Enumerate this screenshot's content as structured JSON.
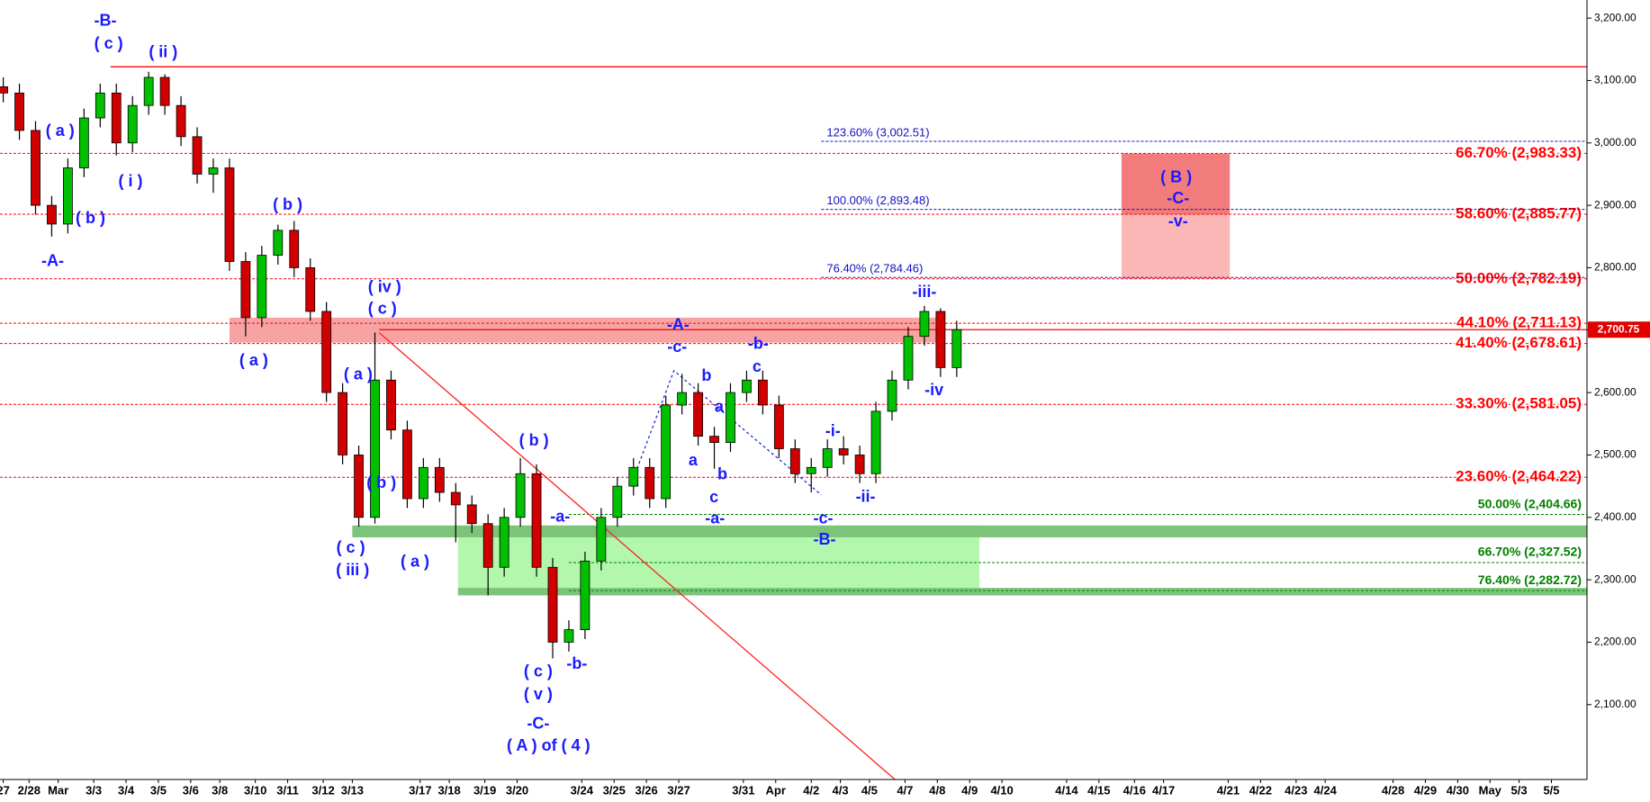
{
  "chart_data": {
    "type": "candlestick",
    "xlim": [
      -0.1,
      49
    ],
    "ylim": [
      1980,
      3229
    ],
    "xticks": [
      {
        "value": 0,
        "label": "27"
      },
      {
        "value": 0.8,
        "label": "2/28"
      },
      {
        "value": 1.7,
        "label": "Mar"
      },
      {
        "value": 2.8,
        "label": "3/3"
      },
      {
        "value": 3.8,
        "label": "3/4"
      },
      {
        "value": 4.8,
        "label": "3/5"
      },
      {
        "value": 5.8,
        "label": "3/6"
      },
      {
        "value": 6.7,
        "label": "3/8"
      },
      {
        "value": 7.8,
        "label": "3/10"
      },
      {
        "value": 8.8,
        "label": "3/11"
      },
      {
        "value": 9.9,
        "label": "3/12"
      },
      {
        "value": 10.8,
        "label": "3/13"
      },
      {
        "value": 12.9,
        "label": "3/17"
      },
      {
        "value": 13.8,
        "label": "3/18"
      },
      {
        "value": 14.9,
        "label": "3/19"
      },
      {
        "value": 15.9,
        "label": "3/20"
      },
      {
        "value": 17.9,
        "label": "3/24"
      },
      {
        "value": 18.9,
        "label": "3/25"
      },
      {
        "value": 19.9,
        "label": "3/26"
      },
      {
        "value": 20.9,
        "label": "3/27"
      },
      {
        "value": 22.9,
        "label": "3/31"
      },
      {
        "value": 23.9,
        "label": "Apr"
      },
      {
        "value": 25,
        "label": "4/2"
      },
      {
        "value": 25.9,
        "label": "4/3"
      },
      {
        "value": 26.8,
        "label": "4/5"
      },
      {
        "value": 27.9,
        "label": "4/7"
      },
      {
        "value": 28.9,
        "label": "4/8"
      },
      {
        "value": 29.9,
        "label": "4/9"
      },
      {
        "value": 30.9,
        "label": "4/10"
      },
      {
        "value": 32.9,
        "label": "4/14"
      },
      {
        "value": 33.9,
        "label": "4/15"
      },
      {
        "value": 35,
        "label": "4/16"
      },
      {
        "value": 35.9,
        "label": "4/17"
      },
      {
        "value": 37.9,
        "label": "4/21"
      },
      {
        "value": 38.9,
        "label": "4/22"
      },
      {
        "value": 40,
        "label": "4/23"
      },
      {
        "value": 40.9,
        "label": "4/24"
      },
      {
        "value": 43,
        "label": "4/28"
      },
      {
        "value": 44,
        "label": "4/29"
      },
      {
        "value": 45,
        "label": "4/30"
      },
      {
        "value": 46,
        "label": "May"
      },
      {
        "value": 46.9,
        "label": "5/3"
      },
      {
        "value": 47.9,
        "label": "5/5"
      }
    ],
    "yticks": [
      {
        "value": 2100,
        "label": "2,100.00"
      },
      {
        "value": 2200,
        "label": "2,200.00"
      },
      {
        "value": 2300,
        "label": "2,300.00"
      },
      {
        "value": 2400,
        "label": "2,400.00"
      },
      {
        "value": 2500,
        "label": "2,500.00"
      },
      {
        "value": 2600,
        "label": "2,600.00"
      },
      {
        "value": 2700,
        "label": "2,700.00"
      },
      {
        "value": 2800,
        "label": "2,800.00"
      },
      {
        "value": 2900,
        "label": "2,900.00"
      },
      {
        "value": 3000,
        "label": "3,000.00"
      },
      {
        "value": 3100,
        "label": "3,100.00"
      },
      {
        "value": 3200,
        "label": "3,200.00"
      }
    ],
    "up_color": "#00c000",
    "down_color": "#d00000",
    "x": [
      0,
      0.5,
      1,
      1.5,
      2,
      2.5,
      3,
      3.5,
      4,
      4.5,
      5,
      5.5,
      6,
      6.5,
      7,
      7.5,
      8,
      8.5,
      9,
      9.5,
      10,
      10.5,
      11,
      11.5,
      12,
      12.5,
      13,
      13.5,
      14,
      14.5,
      15,
      15.5,
      16,
      16.5,
      17,
      17.5,
      18,
      18.5,
      19,
      19.5,
      20,
      20.5,
      21,
      21.5,
      22,
      22.5,
      23,
      23.5,
      24,
      24.5,
      25,
      25.5,
      26,
      26.5,
      27,
      27.5,
      28,
      28.5,
      29,
      29.5
    ],
    "open": [
      3090,
      3080,
      3020,
      2900,
      2870,
      2960,
      3040,
      3080,
      3000,
      3060,
      3105,
      3060,
      3010,
      2950,
      2960,
      2810,
      2720,
      2820,
      2860,
      2800,
      2730,
      2600,
      2500,
      2400,
      2620,
      2540,
      2430,
      2480,
      2440,
      2420,
      2390,
      2320,
      2400,
      2470,
      2320,
      2200,
      2220,
      2330,
      2400,
      2450,
      2480,
      2430,
      2580,
      2600,
      2530,
      2520,
      2600,
      2620,
      2580,
      2510,
      2470,
      2480,
      2510,
      2500,
      2470,
      2570,
      2620,
      2690,
      2730,
      2640
    ],
    "high": [
      3105,
      3095,
      3035,
      2915,
      2975,
      3055,
      3095,
      3095,
      3075,
      3114,
      3110,
      3075,
      3025,
      2975,
      2975,
      2825,
      2835,
      2869,
      2875,
      2815,
      2745,
      2615,
      2515,
      2696,
      2635,
      2555,
      2495,
      2495,
      2455,
      2435,
      2405,
      2415,
      2495,
      2485,
      2335,
      2235,
      2345,
      2415,
      2465,
      2495,
      2495,
      2595,
      2630,
      2615,
      2545,
      2615,
      2635,
      2635,
      2595,
      2525,
      2495,
      2525,
      2530,
      2515,
      2585,
      2635,
      2705,
      2739,
      2735,
      2715
    ],
    "low": [
      3065,
      3005,
      2885,
      2850,
      2855,
      2945,
      3025,
      2980,
      2985,
      3045,
      3045,
      2995,
      2935,
      2920,
      2795,
      2690,
      2705,
      2805,
      2785,
      2715,
      2585,
      2485,
      2385,
      2390,
      2525,
      2415,
      2415,
      2425,
      2360,
      2375,
      2275,
      2305,
      2385,
      2305,
      2174,
      2185,
      2205,
      2315,
      2385,
      2435,
      2415,
      2415,
      2565,
      2515,
      2478,
      2505,
      2585,
      2565,
      2495,
      2455,
      2440,
      2465,
      2485,
      2455,
      2455,
      2555,
      2605,
      2675,
      2625,
      2625
    ],
    "close": [
      3080,
      3020,
      2900,
      2870,
      2960,
      3040,
      3080,
      3000,
      3060,
      3105,
      3060,
      3010,
      2950,
      2960,
      2810,
      2720,
      2820,
      2860,
      2800,
      2730,
      2600,
      2500,
      2400,
      2620,
      2540,
      2430,
      2480,
      2440,
      2420,
      2390,
      2320,
      2400,
      2470,
      2320,
      2200,
      2220,
      2330,
      2400,
      2450,
      2480,
      2430,
      2580,
      2600,
      2530,
      2520,
      2600,
      2620,
      2580,
      2510,
      2470,
      2480,
      2510,
      2500,
      2470,
      2570,
      2620,
      2690,
      2730,
      2640,
      2700.75
    ],
    "zones": [
      {
        "x": [
          7.0,
          28.9
        ],
        "y": [
          2680,
          2720
        ],
        "color": "#f7a3a3"
      },
      {
        "x": [
          34.6,
          37.95
        ],
        "y": [
          2885,
          2983
        ],
        "color": "#f27c7c"
      },
      {
        "x": [
          34.6,
          37.95
        ],
        "y": [
          2782,
          2885
        ],
        "color": "#fbb6b6"
      },
      {
        "x": [
          14.07,
          30.2
        ],
        "y": [
          2282,
          2387
        ],
        "color": "#b3f7ad"
      },
      {
        "x": [
          10.8,
          49
        ],
        "y": [
          2368,
          2387
        ],
        "color": "#7cc47a"
      },
      {
        "x": [
          14.07,
          49
        ],
        "y": [
          2275,
          2287
        ],
        "color": "#7cc47a"
      }
    ],
    "segments": [
      {
        "x": [
          3.32,
          49
        ],
        "y": [
          3122,
          3122
        ],
        "color": "#ff0000",
        "dash": "none"
      },
      {
        "x": [
          11.63,
          49
        ],
        "y": [
          2700.75,
          2700.75
        ],
        "color": "#ff0000",
        "dash": "none"
      },
      {
        "x": [
          11.63,
          27.59
        ],
        "y": [
          2696,
          1980
        ],
        "color": "#ff2020",
        "dash": "none"
      },
      {
        "x": [
          19.61,
          20.75,
          25.31
        ],
        "y": [
          2478,
          2635,
          2436
        ],
        "color": "#2030d0",
        "dash": "3,3"
      }
    ],
    "levels": [
      {
        "label": "66.70% (2,983.33)",
        "value": 2983.33,
        "group": "retracement",
        "color": "#ff0000",
        "x_start": -0.1
      },
      {
        "label": "58.60% (2,885.77)",
        "value": 2885.77,
        "group": "retracement",
        "color": "#ff0000",
        "x_start": -0.1
      },
      {
        "label": "50.00% (2,782.19)",
        "value": 2782.19,
        "group": "retracement",
        "color": "#ff0000",
        "x_start": -0.1
      },
      {
        "label": "44.10% (2,711.13)",
        "value": 2711.13,
        "group": "retracement",
        "color": "#ff0000",
        "x_start": -0.1
      },
      {
        "label": "41.40% (2,678.61)",
        "value": 2678.61,
        "group": "retracement",
        "color": "#ff0000",
        "x_start": -0.1
      },
      {
        "label": "33.30% (2,581.05)",
        "value": 2581.05,
        "group": "retracement",
        "color": "#ff0000",
        "x_start": -0.1
      },
      {
        "label": "23.60% (2,464.22)",
        "value": 2464.22,
        "group": "retracement",
        "color": "#ff0000",
        "x_start": -0.1
      },
      {
        "label": "123.60% (3,002.51)",
        "value": 3002.51,
        "group": "extension",
        "color": "#1010c0",
        "x_start": 25.31
      },
      {
        "label": "100.00% (2,893.48)",
        "value": 2893.48,
        "group": "extension",
        "color": "#1010c0",
        "x_start": 25.31
      },
      {
        "label": "76.40% (2,784.46)",
        "value": 2784.46,
        "group": "extension",
        "color": "#1010c0",
        "x_start": 25.31
      },
      {
        "label": "50.00% (2,404.66)",
        "value": 2404.66,
        "group": "support",
        "color": "#008000",
        "x_start": 17.5
      },
      {
        "label": "66.70% (2,327.52)",
        "value": 2327.52,
        "group": "support",
        "color": "#008000",
        "x_start": 17.5
      },
      {
        "label": "76.40% (2,282.72)",
        "value": 2282.72,
        "group": "support",
        "color": "#008000",
        "x_start": 17.5
      }
    ],
    "last_price": {
      "value": 2700.75,
      "label": "2,700.75"
    },
    "annotation_color": "#1a1aff",
    "annotations": [
      {
        "text": "-B-",
        "x": 3.16,
        "y": 3195
      },
      {
        "text": "( c )",
        "x": 3.26,
        "y": 3158
      },
      {
        "text": "( ii )",
        "x": 4.95,
        "y": 3144
      },
      {
        "text": "( a )",
        "x": 1.76,
        "y": 3018
      },
      {
        "text": "( b )",
        "x": 2.7,
        "y": 2878
      },
      {
        "text": "( i )",
        "x": 3.94,
        "y": 2937
      },
      {
        "text": "-A-",
        "x": 1.53,
        "y": 2810
      },
      {
        "text": "( b )",
        "x": 8.8,
        "y": 2900
      },
      {
        "text": "( a )",
        "x": 7.75,
        "y": 2650
      },
      {
        "text": "( iv )",
        "x": 11.8,
        "y": 2768
      },
      {
        "text": "( c )",
        "x": 11.73,
        "y": 2733
      },
      {
        "text": "( a )",
        "x": 10.98,
        "y": 2628
      },
      {
        "text": "( b )",
        "x": 11.7,
        "y": 2454
      },
      {
        "text": "( c )",
        "x": 10.75,
        "y": 2350
      },
      {
        "text": "( iii )",
        "x": 10.81,
        "y": 2314
      },
      {
        "text": "( a )",
        "x": 12.74,
        "y": 2328
      },
      {
        "text": "( b )",
        "x": 16.42,
        "y": 2522
      },
      {
        "text": "-a-",
        "x": 17.23,
        "y": 2400
      },
      {
        "text": "-b-",
        "x": 17.75,
        "y": 2164
      },
      {
        "text": "( c )",
        "x": 16.55,
        "y": 2152
      },
      {
        "text": "( v )",
        "x": 16.55,
        "y": 2115
      },
      {
        "text": "-C-",
        "x": 16.55,
        "y": 2068
      },
      {
        "text": "( A ) of ( 4 )",
        "x": 16.87,
        "y": 2033
      },
      {
        "text": "-A-",
        "x": 20.88,
        "y": 2707
      },
      {
        "text": "-c-",
        "x": 20.85,
        "y": 2672
      },
      {
        "text": "b",
        "x": 21.76,
        "y": 2626
      },
      {
        "text": "a",
        "x": 22.15,
        "y": 2576
      },
      {
        "text": "a",
        "x": 21.34,
        "y": 2490
      },
      {
        "text": "b",
        "x": 22.25,
        "y": 2468
      },
      {
        "text": "c",
        "x": 21.99,
        "y": 2431
      },
      {
        "text": "-a-",
        "x": 22.02,
        "y": 2397
      },
      {
        "text": "-b-",
        "x": 23.36,
        "y": 2677
      },
      {
        "text": "c",
        "x": 23.32,
        "y": 2640
      },
      {
        "text": "-i-",
        "x": 25.67,
        "y": 2537
      },
      {
        "text": "-ii-",
        "x": 26.68,
        "y": 2432
      },
      {
        "text": "-c-",
        "x": 25.37,
        "y": 2397
      },
      {
        "text": "-B-",
        "x": 25.41,
        "y": 2363
      },
      {
        "text": "-iii-",
        "x": 28.5,
        "y": 2760
      },
      {
        "text": "-iv",
        "x": 28.8,
        "y": 2603
      },
      {
        "text": "( B )",
        "x": 36.29,
        "y": 2944
      },
      {
        "text": "-C-",
        "x": 36.35,
        "y": 2910
      },
      {
        "text": "-v-",
        "x": 36.35,
        "y": 2873
      }
    ]
  }
}
